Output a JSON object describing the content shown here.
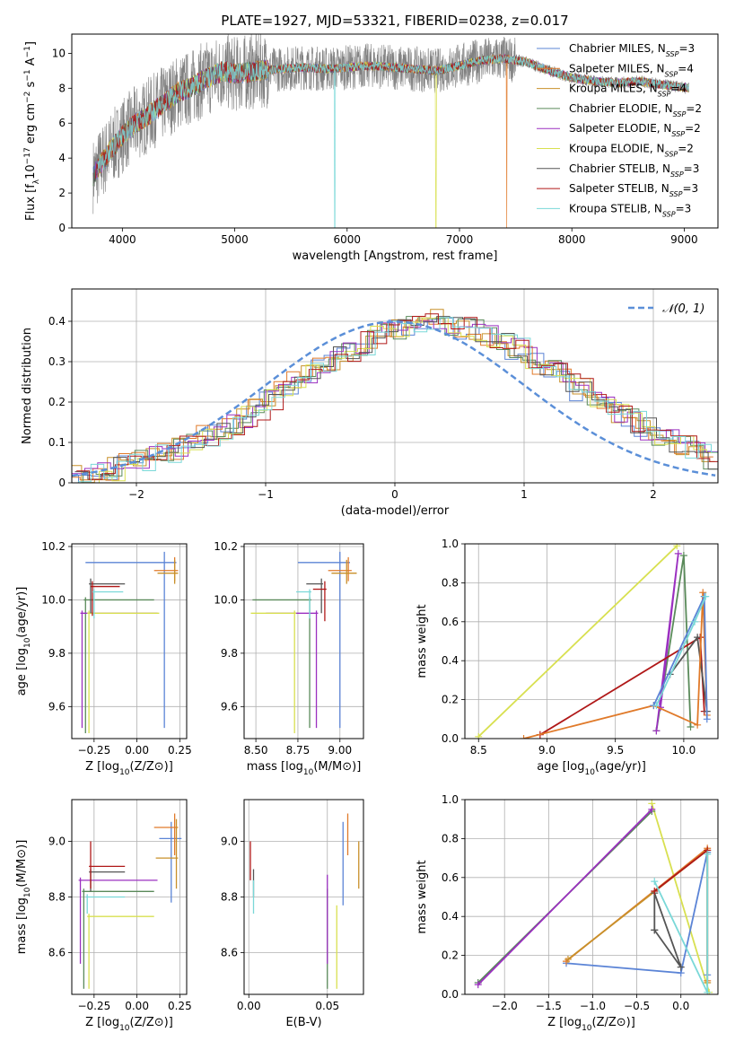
{
  "figure_title": "PLATE=1927, MJD=53321, FIBERID=0238, z=0.017",
  "colors": {
    "chabrier_miles": "#5b84d6",
    "salpeter_miles": "#e07a2a",
    "kroupa_miles": "#c8902a",
    "chabrier_elodie": "#5a8a5a",
    "salpeter_elodie": "#9b30c0",
    "kroupa_elodie": "#d8e050",
    "chabrier_stelib": "#555555",
    "salpeter_stelib": "#b01818",
    "kroupa_stelib": "#7ad8d8",
    "gaussian": "#5b8fd8",
    "grid": "#b0b0b0"
  },
  "chart_data": [
    {
      "id": "spectrum",
      "type": "line",
      "title": "PLATE=1927, MJD=53321, FIBERID=0238, z=0.017",
      "xlabel": "wavelength [Angstrom, rest frame]",
      "ylabel_parts": [
        "Flux [f",
        "λ",
        "10",
        "−17",
        " erg cm",
        "−2",
        " s",
        "−1",
        " A",
        "−1",
        "]"
      ],
      "xlim": [
        3550,
        9300
      ],
      "ylim": [
        0,
        11.1
      ],
      "xticks": [
        4000,
        5000,
        6000,
        7000,
        8000,
        9000
      ],
      "yticks": [
        0,
        2,
        4,
        6,
        8,
        10
      ],
      "grid": false,
      "legend_position": "top-right",
      "data_wavelength_range": [
        3740,
        9040
      ],
      "model_continuum_x": [
        3740,
        3800,
        3900,
        4000,
        4100,
        4200,
        4300,
        4400,
        4500,
        4600,
        4700,
        4800,
        4900,
        5000,
        5200,
        5400,
        5600,
        5800,
        6000,
        6200,
        6400,
        6600,
        6800,
        7000,
        7200,
        7400,
        7600,
        7800,
        8000,
        8200,
        8400,
        8600,
        8800,
        9040
      ],
      "model_continuum_y": [
        3.0,
        3.6,
        4.5,
        5.3,
        5.9,
        6.3,
        6.8,
        7.3,
        7.8,
        8.0,
        8.4,
        8.7,
        9.0,
        8.8,
        9.0,
        9.1,
        9.2,
        9.1,
        9.2,
        9.3,
        9.2,
        9.1,
        9.0,
        9.3,
        9.6,
        9.7,
        9.5,
        9.0,
        8.6,
        8.4,
        8.3,
        8.4,
        8.2,
        8.0
      ],
      "series": [
        {
          "name": "Chabrier MILES, N",
          "sub": "SSP",
          "suffix": "=3",
          "color_key": "chabrier_miles"
        },
        {
          "name": "Salpeter MILES, N",
          "sub": "SSP",
          "suffix": "=4",
          "color_key": "salpeter_miles"
        },
        {
          "name": "Kroupa MILES, N",
          "sub": "SSP",
          "suffix": "=4",
          "color_key": "kroupa_miles"
        },
        {
          "name": "Chabrier ELODIE, N",
          "sub": "SSP",
          "suffix": "=2",
          "color_key": "chabrier_elodie"
        },
        {
          "name": "Salpeter ELODIE, N",
          "sub": "SSP",
          "suffix": "=2",
          "color_key": "salpeter_elodie"
        },
        {
          "name": "Kroupa ELODIE, N",
          "sub": "SSP",
          "suffix": "=2",
          "color_key": "kroupa_elodie"
        },
        {
          "name": "Chabrier STELIB, N",
          "sub": "SSP",
          "suffix": "=3",
          "color_key": "chabrier_stelib"
        },
        {
          "name": "Salpeter STELIB, N",
          "sub": "SSP",
          "suffix": "=3",
          "color_key": "salpeter_stelib"
        },
        {
          "name": "Kroupa STELIB, N",
          "sub": "SSP",
          "suffix": "=3",
          "color_key": "kroupa_stelib"
        }
      ]
    },
    {
      "id": "residuals",
      "type": "bar",
      "xlabel": "(data-model)/error",
      "ylabel": "Normed distribution",
      "xlim": [
        -2.5,
        2.5
      ],
      "ylim": [
        0,
        0.48
      ],
      "xticks": [
        -2,
        -1,
        0,
        1,
        2
      ],
      "yticks": [
        0.0,
        0.1,
        0.2,
        0.3,
        0.4
      ],
      "grid": true,
      "legend_position": "top-right",
      "legend": [
        "𝒩(0, 1)"
      ],
      "bin_edges_start": -2.5,
      "bin_width": 0.1,
      "histogram_values": [
        0.018,
        0.022,
        0.028,
        0.035,
        0.045,
        0.055,
        0.065,
        0.075,
        0.088,
        0.1,
        0.115,
        0.13,
        0.148,
        0.165,
        0.185,
        0.205,
        0.225,
        0.245,
        0.268,
        0.29,
        0.31,
        0.33,
        0.345,
        0.36,
        0.375,
        0.385,
        0.395,
        0.4,
        0.4,
        0.395,
        0.385,
        0.375,
        0.36,
        0.345,
        0.33,
        0.312,
        0.293,
        0.273,
        0.252,
        0.232,
        0.212,
        0.192,
        0.172,
        0.153,
        0.135,
        0.118,
        0.102,
        0.087,
        0.073,
        0.06
      ],
      "histogram_colors": [
        "chabrier_miles",
        "salpeter_miles",
        "kroupa_miles",
        "chabrier_elodie",
        "salpeter_elodie",
        "kroupa_elodie",
        "chabrier_stelib",
        "salpeter_stelib",
        "kroupa_stelib"
      ]
    },
    {
      "id": "z_vs_age",
      "type": "scatter",
      "xlabel": "Z [log10(Z/Z⊙)]",
      "ylabel": "age  [log10(age/yr)]",
      "xlim": [
        -0.38,
        0.29
      ],
      "ylim": [
        9.48,
        10.21
      ],
      "xticks": [
        -0.25,
        0.0,
        0.25
      ],
      "xticklabels": [
        "−0.25",
        "0.00",
        "0.25"
      ],
      "yticks": [
        9.6,
        9.8,
        10.0,
        10.2
      ],
      "yticklabels": [
        "9.6",
        "9.8",
        "10.0",
        "10.2"
      ],
      "grid": true,
      "points": [
        {
          "c": "chabrier_miles",
          "x": 0.16,
          "xlo": -0.3,
          "xhi": 0.23,
          "y": 10.14,
          "ylo": 9.52,
          "yhi": 10.18
        },
        {
          "c": "salpeter_miles",
          "x": 0.22,
          "xlo": 0.1,
          "xhi": 0.24,
          "y": 10.11,
          "ylo": 10.07,
          "yhi": 10.16
        },
        {
          "c": "kroupa_miles",
          "x": 0.22,
          "xlo": 0.12,
          "xhi": 0.24,
          "y": 10.1,
          "ylo": 10.06,
          "yhi": 10.15
        },
        {
          "c": "chabrier_elodie",
          "x": -0.3,
          "xlo": -0.31,
          "xhi": 0.1,
          "y": 10.0,
          "ylo": 9.5,
          "yhi": 10.01
        },
        {
          "c": "salpeter_elodie",
          "x": -0.32,
          "xlo": -0.33,
          "xhi": 0.12,
          "y": 9.95,
          "ylo": 9.52,
          "yhi": 9.96
        },
        {
          "c": "kroupa_elodie",
          "x": -0.28,
          "xlo": -0.29,
          "xhi": 0.13,
          "y": 9.95,
          "ylo": 9.5,
          "yhi": 9.96
        },
        {
          "c": "chabrier_stelib",
          "x": -0.27,
          "xlo": -0.28,
          "xhi": -0.07,
          "y": 10.06,
          "ylo": 9.95,
          "yhi": 10.08
        },
        {
          "c": "salpeter_stelib",
          "x": -0.26,
          "xlo": -0.27,
          "xhi": -0.1,
          "y": 10.05,
          "ylo": 9.94,
          "yhi": 10.07
        },
        {
          "c": "kroupa_stelib",
          "x": -0.25,
          "xlo": -0.26,
          "xhi": -0.08,
          "y": 10.03,
          "ylo": 9.93,
          "yhi": 10.04
        }
      ]
    },
    {
      "id": "mass_vs_age",
      "type": "scatter",
      "xlabel": "mass [log10(M/M⊙)]",
      "ylabel": "",
      "xlim": [
        8.43,
        9.14
      ],
      "ylim": [
        9.48,
        10.21
      ],
      "xticks": [
        8.5,
        8.75,
        9.0
      ],
      "xticklabels": [
        "8.50",
        "8.75",
        "9.00"
      ],
      "yticks": [
        9.6,
        9.8,
        10.0,
        10.2
      ],
      "yticklabels": [
        "9.6",
        "9.8",
        "10.0",
        "10.2"
      ],
      "grid": true,
      "points": [
        {
          "c": "chabrier_miles",
          "x": 9.0,
          "xlo": 8.75,
          "xhi": 9.06,
          "y": 10.14,
          "ylo": 9.52,
          "yhi": 10.18
        },
        {
          "c": "salpeter_miles",
          "x": 9.05,
          "xlo": 8.93,
          "xhi": 9.07,
          "y": 10.11,
          "ylo": 10.07,
          "yhi": 10.16
        },
        {
          "c": "kroupa_miles",
          "x": 9.04,
          "xlo": 8.95,
          "xhi": 9.1,
          "y": 10.1,
          "ylo": 10.06,
          "yhi": 10.15
        },
        {
          "c": "chabrier_elodie",
          "x": 8.82,
          "xlo": 8.48,
          "xhi": 8.83,
          "y": 10.0,
          "ylo": 9.52,
          "yhi": 10.01
        },
        {
          "c": "salpeter_elodie",
          "x": 8.86,
          "xlo": 8.56,
          "xhi": 8.87,
          "y": 9.95,
          "ylo": 9.52,
          "yhi": 9.96
        },
        {
          "c": "kroupa_elodie",
          "x": 8.73,
          "xlo": 8.47,
          "xhi": 8.74,
          "y": 9.95,
          "ylo": 9.5,
          "yhi": 9.96
        },
        {
          "c": "chabrier_stelib",
          "x": 8.89,
          "xlo": 8.8,
          "xhi": 8.9,
          "y": 10.06,
          "ylo": 9.95,
          "yhi": 10.08
        },
        {
          "c": "salpeter_stelib",
          "x": 8.91,
          "xlo": 8.84,
          "xhi": 8.92,
          "y": 10.04,
          "ylo": 9.92,
          "yhi": 10.07
        },
        {
          "c": "kroupa_stelib",
          "x": 8.82,
          "xlo": 8.74,
          "xhi": 8.83,
          "y": 10.03,
          "ylo": 9.93,
          "yhi": 10.04
        }
      ]
    },
    {
      "id": "age_vs_weight",
      "type": "line",
      "xlabel": "age  [log10(age/yr)]",
      "ylabel": "mass weight",
      "xlim": [
        8.4,
        10.25
      ],
      "ylim": [
        0,
        1.0
      ],
      "xticks": [
        8.5,
        9.0,
        9.5,
        10.0
      ],
      "xticklabels": [
        "8.5",
        "9.0",
        "9.5",
        "10.0"
      ],
      "yticks": [
        0.0,
        0.2,
        0.4,
        0.6,
        0.8,
        1.0
      ],
      "yticklabels": [
        "0.0",
        "0.2",
        "0.4",
        "0.6",
        "0.8",
        "1.0"
      ],
      "grid": true,
      "series": [
        {
          "c": "kroupa_elodie",
          "x": [
            8.5,
            9.95
          ],
          "y": [
            0.01,
            0.99
          ]
        },
        {
          "c": "chabrier_elodie",
          "x": [
            9.8,
            10.0,
            10.05
          ],
          "y": [
            0.04,
            0.94,
            0.06
          ]
        },
        {
          "c": "salpeter_elodie",
          "x": [
            9.8,
            9.96,
            9.83
          ],
          "y": [
            0.04,
            0.95,
            0.16
          ]
        },
        {
          "c": "salpeter_stelib",
          "x": [
            8.95,
            10.12,
            10.15
          ],
          "y": [
            0.02,
            0.52,
            0.14
          ]
        },
        {
          "c": "chabrier_stelib",
          "x": [
            9.9,
            10.1,
            10.17
          ],
          "y": [
            0.33,
            0.52,
            0.14
          ]
        },
        {
          "c": "salpeter_miles",
          "x": [
            8.83,
            9.78,
            10.1,
            10.14,
            10.17
          ],
          "y": [
            0.0,
            0.17,
            0.07,
            0.75,
            0.12
          ]
        },
        {
          "c": "chabrier_miles",
          "x": [
            9.78,
            10.15,
            10.17
          ],
          "y": [
            0.17,
            0.73,
            0.1
          ]
        },
        {
          "c": "kroupa_stelib",
          "x": [
            9.8,
            10.08,
            10.16
          ],
          "y": [
            0.17,
            0.6,
            0.73
          ]
        }
      ]
    },
    {
      "id": "z_vs_mass",
      "type": "scatter",
      "xlabel": "Z [log10(Z/Z⊙)]",
      "ylabel": "mass [log10(M/M⊙)]",
      "xlim": [
        -0.38,
        0.29
      ],
      "ylim": [
        8.45,
        9.15
      ],
      "xticks": [
        -0.25,
        0.0,
        0.25
      ],
      "xticklabels": [
        "−0.25",
        "0.00",
        "0.25"
      ],
      "yticks": [
        8.6,
        8.8,
        9.0
      ],
      "yticklabels": [
        "8.6",
        "8.8",
        "9.0"
      ],
      "grid": true,
      "points": [
        {
          "c": "chabrier_miles",
          "x": 0.2,
          "xlo": 0.13,
          "xhi": 0.26,
          "y": 9.01,
          "ylo": 8.78,
          "yhi": 9.07
        },
        {
          "c": "salpeter_miles",
          "x": 0.22,
          "xlo": 0.1,
          "xhi": 0.24,
          "y": 9.05,
          "ylo": 8.95,
          "yhi": 9.1
        },
        {
          "c": "kroupa_miles",
          "x": 0.23,
          "xlo": 0.11,
          "xhi": 0.24,
          "y": 8.94,
          "ylo": 8.83,
          "yhi": 9.08
        },
        {
          "c": "chabrier_elodie",
          "x": -0.31,
          "xlo": -0.32,
          "xhi": 0.1,
          "y": 8.82,
          "ylo": 8.47,
          "yhi": 8.83
        },
        {
          "c": "salpeter_elodie",
          "x": -0.33,
          "xlo": -0.34,
          "xhi": 0.12,
          "y": 8.86,
          "ylo": 8.56,
          "yhi": 8.87
        },
        {
          "c": "kroupa_elodie",
          "x": -0.28,
          "xlo": -0.29,
          "xhi": 0.1,
          "y": 8.73,
          "ylo": 8.47,
          "yhi": 8.74
        },
        {
          "c": "chabrier_stelib",
          "x": -0.27,
          "xlo": -0.28,
          "xhi": -0.07,
          "y": 8.89,
          "ylo": 8.82,
          "yhi": 8.9
        },
        {
          "c": "salpeter_stelib",
          "x": -0.27,
          "xlo": -0.28,
          "xhi": -0.07,
          "y": 8.91,
          "ylo": 8.83,
          "yhi": 9.0
        },
        {
          "c": "kroupa_stelib",
          "x": -0.29,
          "xlo": -0.3,
          "xhi": -0.07,
          "y": 8.8,
          "ylo": 8.74,
          "yhi": 8.81
        }
      ]
    },
    {
      "id": "ebv_vs_mass",
      "type": "scatter",
      "xlabel": "E(B-V)",
      "ylabel": "",
      "xlim": [
        -0.003,
        0.073
      ],
      "ylim": [
        8.45,
        9.15
      ],
      "xticks": [
        0.0,
        0.05
      ],
      "xticklabels": [
        "0.00",
        "0.05"
      ],
      "yticks": [
        8.6,
        8.8,
        9.0
      ],
      "yticklabels": [
        "8.6",
        "8.8",
        "9.0"
      ],
      "grid": true,
      "points": [
        {
          "c": "chabrier_miles",
          "x": 0.06,
          "y": 8.95,
          "ylo": 8.77,
          "yhi": 9.07
        },
        {
          "c": "salpeter_miles",
          "x": 0.063,
          "y": 9.05,
          "ylo": 8.95,
          "yhi": 9.1
        },
        {
          "c": "kroupa_miles",
          "x": 0.07,
          "y": 8.94,
          "ylo": 8.83,
          "yhi": 9.0
        },
        {
          "c": "chabrier_elodie",
          "x": 0.05,
          "y": 8.82,
          "ylo": 8.47,
          "yhi": 8.83
        },
        {
          "c": "salpeter_elodie",
          "x": 0.05,
          "y": 8.86,
          "ylo": 8.56,
          "yhi": 8.88
        },
        {
          "c": "kroupa_elodie",
          "x": 0.056,
          "y": 8.73,
          "ylo": 8.47,
          "yhi": 8.77
        },
        {
          "c": "chabrier_stelib",
          "x": 0.003,
          "y": 8.89,
          "ylo": 8.8,
          "yhi": 8.9
        },
        {
          "c": "salpeter_stelib",
          "x": 0.001,
          "y": 8.91,
          "ylo": 8.86,
          "yhi": 9.0
        },
        {
          "c": "kroupa_stelib",
          "x": 0.003,
          "y": 8.8,
          "ylo": 8.74,
          "yhi": 8.86
        }
      ]
    },
    {
      "id": "z_vs_weight",
      "type": "line",
      "xlabel": "Z [log10(Z/Z⊙)]",
      "ylabel": "mass weight",
      "xlim": [
        -2.45,
        0.42
      ],
      "ylim": [
        0,
        1.0
      ],
      "xticks": [
        -2.0,
        -1.5,
        -1.0,
        -0.5,
        0.0
      ],
      "xticklabels": [
        "−2.0",
        "−1.5",
        "−1.0",
        "−0.5",
        "0.0"
      ],
      "yticks": [
        0.0,
        0.2,
        0.4,
        0.6,
        0.8,
        1.0
      ],
      "yticklabels": [
        "0.0",
        "0.2",
        "0.4",
        "0.6",
        "0.8",
        "1.0"
      ],
      "grid": true,
      "series": [
        {
          "c": "kroupa_elodie",
          "x": [
            -0.33,
            0.32
          ],
          "y": [
            0.98,
            0.01
          ]
        },
        {
          "c": "chabrier_elodie",
          "x": [
            -2.3,
            -0.33
          ],
          "y": [
            0.06,
            0.94
          ]
        },
        {
          "c": "salpeter_elodie",
          "x": [
            -2.3,
            -0.33
          ],
          "y": [
            0.05,
            0.95
          ]
        },
        {
          "c": "chabrier_miles",
          "x": [
            -1.3,
            0.0,
            0.3,
            0.3
          ],
          "y": [
            0.16,
            0.11,
            0.73,
            0.1
          ]
        },
        {
          "c": "salpeter_miles",
          "x": [
            -1.3,
            0.3,
            0.3
          ],
          "y": [
            0.17,
            0.75,
            0.07
          ]
        },
        {
          "c": "kroupa_miles",
          "x": [
            -1.28,
            0.3,
            0.3
          ],
          "y": [
            0.18,
            0.74,
            0.06
          ]
        },
        {
          "c": "chabrier_stelib",
          "x": [
            -0.3,
            -0.3,
            0.0,
            -0.3
          ],
          "y": [
            0.33,
            0.52,
            0.14,
            0.33
          ]
        },
        {
          "c": "salpeter_stelib",
          "x": [
            -0.3,
            0.3
          ],
          "y": [
            0.53,
            0.74
          ]
        },
        {
          "c": "kroupa_stelib",
          "x": [
            -0.3,
            0.3,
            0.3
          ],
          "y": [
            0.58,
            0.01,
            0.72
          ]
        }
      ]
    }
  ]
}
